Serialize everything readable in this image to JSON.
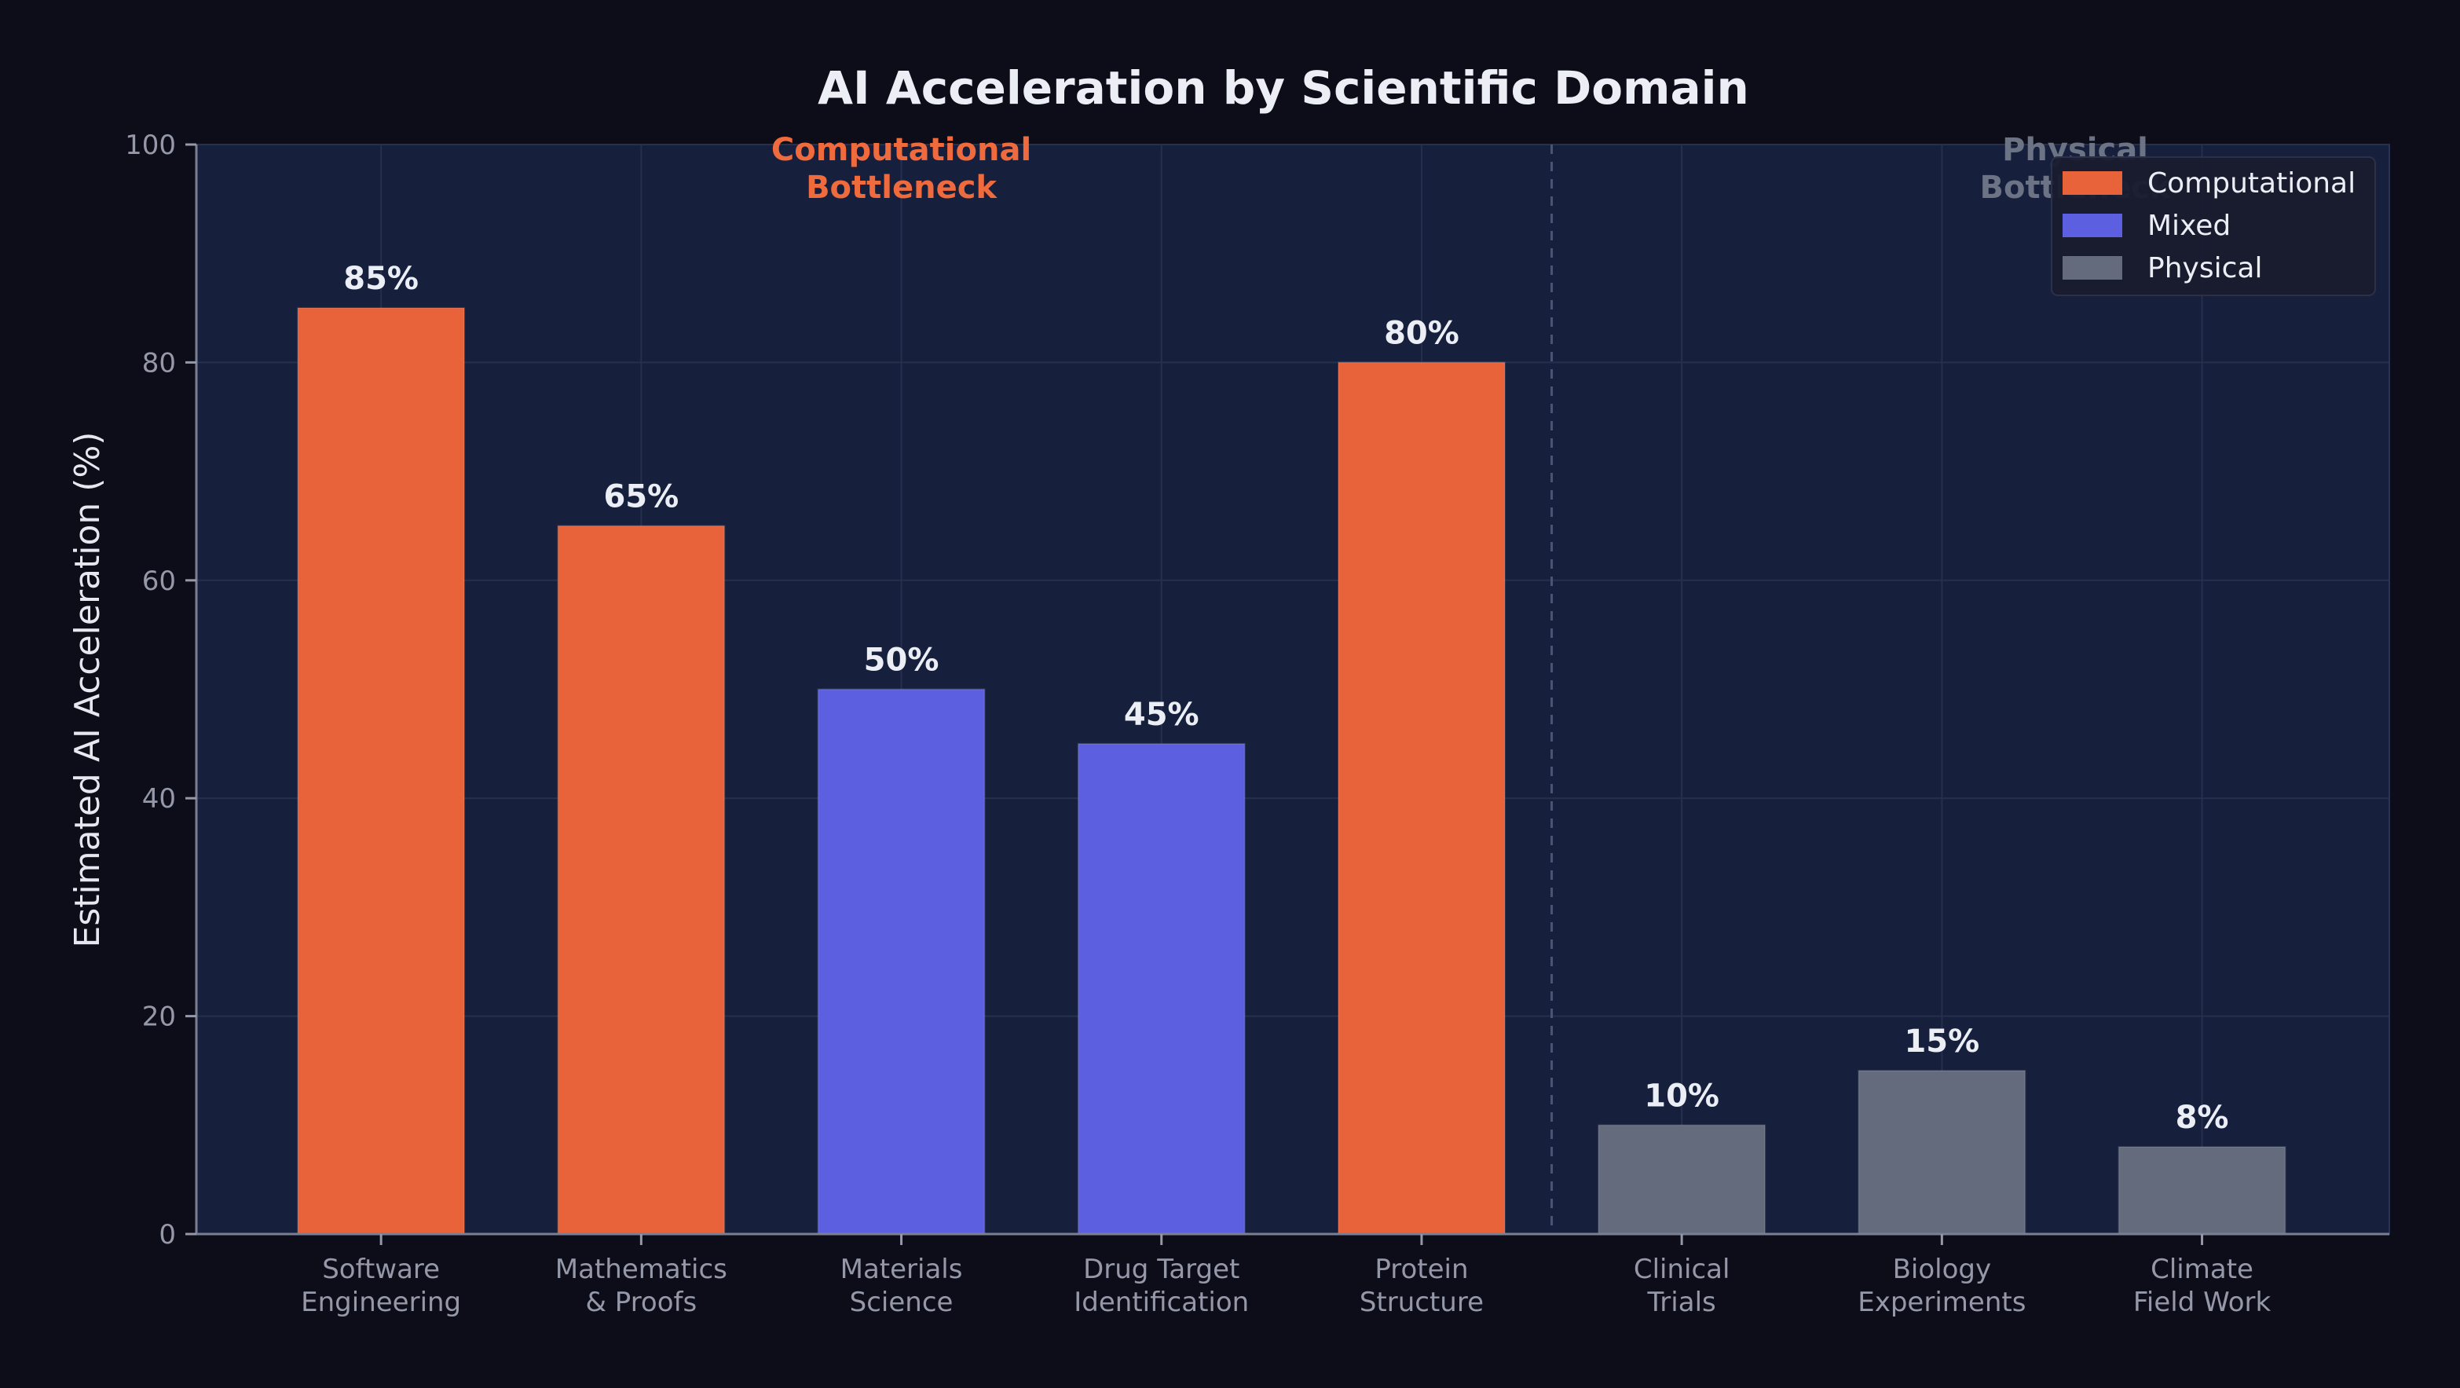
{
  "chart_data": {
    "type": "bar",
    "title": "AI Acceleration by Scientific Domain",
    "xlabel": "",
    "ylabel": "Estimated AI Acceleration (%)",
    "ylim": [
      0,
      100
    ],
    "yticks": [
      0,
      20,
      40,
      60,
      80,
      100
    ],
    "grid": true,
    "legend_position": "top-right",
    "categories": [
      "Software\nEngineering",
      "Mathematics\n& Proofs",
      "Materials\nScience",
      "Drug Target\nIdentification",
      "Protein\nStructure",
      "Clinical\nTrials",
      "Biology\nExperiments",
      "Climate\nField Work"
    ],
    "values": [
      85,
      65,
      50,
      45,
      80,
      10,
      15,
      8
    ],
    "value_labels": [
      "85%",
      "65%",
      "50%",
      "45%",
      "80%",
      "10%",
      "15%",
      "8%"
    ],
    "bar_groups": [
      "Computational",
      "Computational",
      "Mixed",
      "Mixed",
      "Computational",
      "Physical",
      "Physical",
      "Physical"
    ],
    "legend": [
      {
        "name": "Computational",
        "color": "#e8623a"
      },
      {
        "name": "Mixed",
        "color": "#5b5fe0"
      },
      {
        "name": "Physical",
        "color": "#636b7c"
      }
    ],
    "annotations": [
      {
        "text": "Computational\nBottleneck",
        "color": "#ef6a3c"
      },
      {
        "text": "Physical\nBottleneck",
        "color": "#6c7384"
      }
    ]
  },
  "colors": {
    "page_background": "#0c0d19",
    "plot_background": "#16203d",
    "grid": "#25304d",
    "divider": "#4a5573"
  }
}
